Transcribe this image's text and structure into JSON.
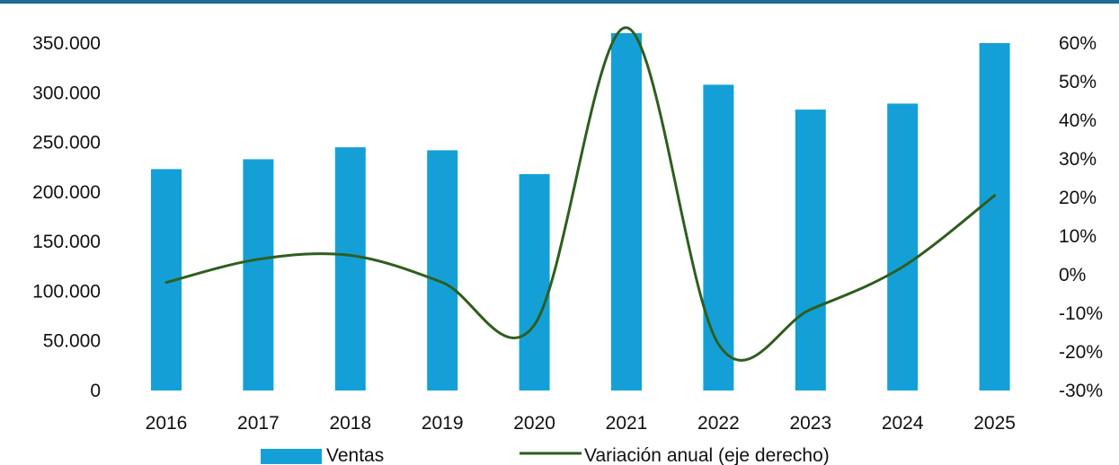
{
  "chart_data": {
    "type": "bar",
    "categories": [
      "2016",
      "2017",
      "2018",
      "2019",
      "2020",
      "2021",
      "2022",
      "2023",
      "2024",
      "2025"
    ],
    "series": [
      {
        "name": "Ventas",
        "type": "bar",
        "axis": "left",
        "color": "#14a0d6",
        "values": [
          223000,
          233000,
          245000,
          242000,
          218000,
          360000,
          308000,
          283000,
          289000,
          350000
        ]
      },
      {
        "name": "Variación anual (eje derecho)",
        "type": "line",
        "axis": "right",
        "color": "#2e5e1e",
        "smooth": true,
        "values": [
          -2,
          4,
          5,
          -2,
          -13,
          64,
          -18,
          -9,
          2,
          20.5
        ]
      }
    ],
    "y_left": {
      "min": 0,
      "max": 350000,
      "ticks": [
        0,
        50000,
        100000,
        150000,
        200000,
        250000,
        300000,
        350000
      ],
      "tick_labels": [
        "0",
        "50.000",
        "100.000",
        "150.000",
        "200.000",
        "250.000",
        "300.000",
        "350.000"
      ]
    },
    "y_right": {
      "min": -30,
      "max": 60,
      "ticks": [
        -30,
        -20,
        -10,
        0,
        10,
        20,
        30,
        40,
        50,
        60
      ],
      "tick_labels": [
        "-30%",
        "-20%",
        "-10%",
        "0%",
        "10%",
        "20%",
        "30%",
        "40%",
        "50%",
        "60%"
      ]
    },
    "grid": false,
    "legend_position": "bottom",
    "top_rule_color": "#1f6a96"
  }
}
